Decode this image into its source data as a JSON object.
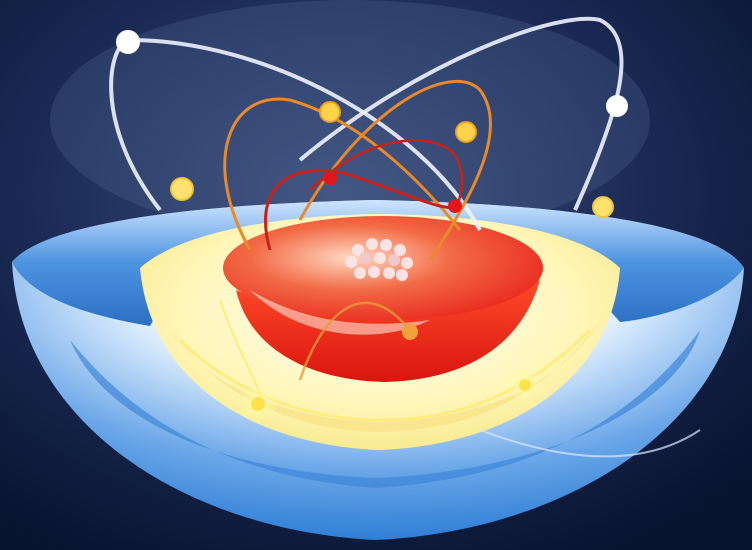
{
  "image": {
    "subject": "atom-shell-model",
    "colors": {
      "background_light": "#3b4f7d",
      "background_dark": "#08132f",
      "outer_shell_blue": "#2f7fd6",
      "outer_shell_white": "#f4f8ff",
      "inner_shell_yellow": "#fff6b8",
      "core_red": "#e8231a",
      "core_highlight": "#ffd9c2",
      "orbit_white": "#eef2ff",
      "orbit_orange": "#e8892a",
      "orbit_red": "#c9201a",
      "electron_white": "#ffffff",
      "electron_yellow": "#ffd24a",
      "electron_red": "#e3161b"
    }
  }
}
